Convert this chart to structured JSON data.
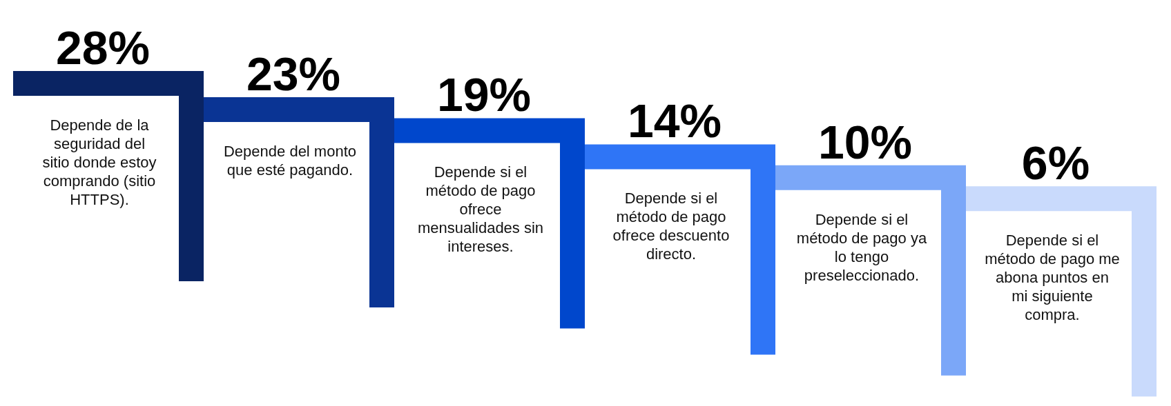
{
  "chart_data": {
    "type": "other",
    "categories": [
      "Depende de la seguridad del sitio donde estoy comprando (sitio HTTPS).",
      "Depende del monto que esté pagando.",
      "Depende si el método de pago ofrece mensualidades sin intereses.",
      "Depende si el método de pago ofrece descuento directo.",
      "Depende si el método de pago ya lo tengo preseleccionado.",
      "Depende si el método de pago me abona puntos en mi siguiente compra."
    ],
    "values": [
      28,
      23,
      19,
      14,
      10,
      6
    ],
    "value_labels": [
      "28%",
      "23%",
      "19%",
      "14%",
      "10%",
      "6%"
    ],
    "colors": [
      "#0a2463",
      "#0a3494",
      "#0047cc",
      "#2f75f6",
      "#7ba7f8",
      "#c9dafc"
    ]
  }
}
